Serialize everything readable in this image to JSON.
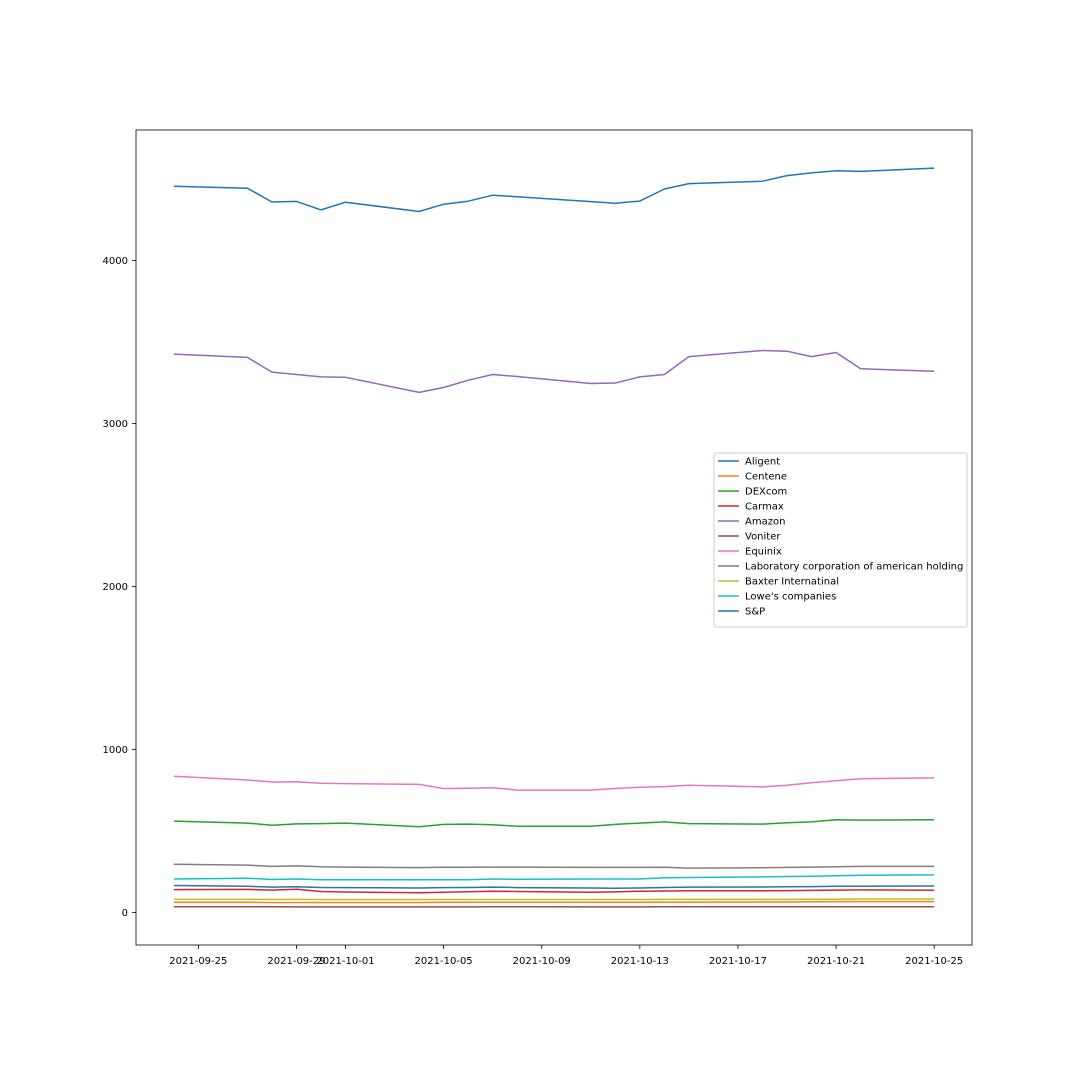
{
  "chart_data": {
    "type": "line",
    "title": "",
    "xlabel": "",
    "ylabel": "",
    "x": [
      "2021-09-24",
      "2021-09-27",
      "2021-09-28",
      "2021-09-29",
      "2021-09-30",
      "2021-10-01",
      "2021-10-04",
      "2021-10-05",
      "2021-10-06",
      "2021-10-07",
      "2021-10-08",
      "2021-10-11",
      "2021-10-12",
      "2021-10-13",
      "2021-10-14",
      "2021-10-15",
      "2021-10-18",
      "2021-10-19",
      "2021-10-20",
      "2021-10-21",
      "2021-10-22",
      "2021-10-25"
    ],
    "xlim": [
      "2021-09-22T11:00",
      "2021-10-26T13:00"
    ],
    "ylim": [
      -200,
      4800
    ],
    "x_ticks": [
      "2021-09-25",
      "2021-09-29",
      "2021-10-01",
      "2021-10-05",
      "2021-10-09",
      "2021-10-13",
      "2021-10-17",
      "2021-10-21",
      "2021-10-25"
    ],
    "y_ticks": [
      0,
      1000,
      2000,
      3000,
      4000
    ],
    "grid": false,
    "legend_position": "center-right",
    "series": [
      {
        "name": "Aligent",
        "color": "#1f77b4",
        "values": [
          165,
          160,
          155,
          157,
          153,
          152,
          150,
          152,
          153,
          155,
          152,
          150,
          148,
          150,
          153,
          155,
          156,
          157,
          158,
          160,
          161,
          162
        ]
      },
      {
        "name": "Centene",
        "color": "#ff7f0e",
        "values": [
          62,
          62,
          61,
          61,
          61,
          61,
          61,
          62,
          62,
          62,
          62,
          62,
          62,
          62,
          63,
          63,
          64,
          64,
          65,
          66,
          66,
          66
        ]
      },
      {
        "name": "DEXcom",
        "color": "#2ca02c",
        "values": [
          560,
          548,
          535,
          543,
          545,
          548,
          525,
          540,
          542,
          538,
          528,
          528,
          540,
          548,
          555,
          545,
          542,
          550,
          555,
          568,
          566,
          569
        ]
      },
      {
        "name": "Carmax",
        "color": "#d62728",
        "values": [
          140,
          141,
          137,
          142,
          128,
          125,
          120,
          124,
          127,
          130,
          128,
          124,
          126,
          130,
          131,
          133,
          133,
          134,
          135,
          137,
          138,
          136
        ]
      },
      {
        "name": "Amazon",
        "color": "#9467bd",
        "values": [
          3425,
          3405,
          3315,
          3300,
          3285,
          3283,
          3190,
          3220,
          3265,
          3300,
          3288,
          3245,
          3248,
          3285,
          3300,
          3410,
          3447,
          3443,
          3410,
          3435,
          3335,
          3320
        ]
      },
      {
        "name": "Voniter",
        "color": "#8c564b",
        "values": [
          35,
          35,
          35,
          34,
          34,
          34,
          34,
          34,
          34,
          35,
          35,
          34,
          34,
          34,
          35,
          35,
          35,
          35,
          35,
          35,
          35,
          35
        ]
      },
      {
        "name": "Equinix",
        "color": "#e377c2",
        "values": [
          835,
          812,
          800,
          802,
          792,
          790,
          785,
          760,
          762,
          765,
          750,
          750,
          760,
          768,
          772,
          780,
          770,
          780,
          795,
          808,
          820,
          825
        ]
      },
      {
        "name": "Laboratory corporation of american holding",
        "color": "#7f7f7f",
        "values": [
          295,
          290,
          282,
          285,
          280,
          278,
          275,
          277,
          277,
          278,
          278,
          276,
          276,
          276,
          277,
          272,
          274,
          276,
          278,
          280,
          282,
          282
        ]
      },
      {
        "name": "Baxter Internatinal",
        "color": "#bcbd22",
        "values": [
          80,
          80,
          80,
          80,
          79,
          79,
          79,
          79,
          79,
          79,
          79,
          79,
          79,
          79,
          80,
          80,
          80,
          80,
          81,
          81,
          82,
          82
        ]
      },
      {
        "name": "Lowe's companies",
        "color": "#17becf",
        "values": [
          205,
          210,
          202,
          205,
          200,
          200,
          200,
          200,
          200,
          205,
          203,
          205,
          205,
          205,
          212,
          214,
          218,
          220,
          222,
          225,
          228,
          230
        ]
      },
      {
        "name": "S&P",
        "color": "#1f77b4",
        "values": [
          4455,
          4443,
          4358,
          4362,
          4310,
          4357,
          4300,
          4345,
          4363,
          4400,
          4391,
          4361,
          4351,
          4364,
          4438,
          4471,
          4486,
          4520,
          4537,
          4550,
          4546,
          4566
        ]
      }
    ]
  }
}
